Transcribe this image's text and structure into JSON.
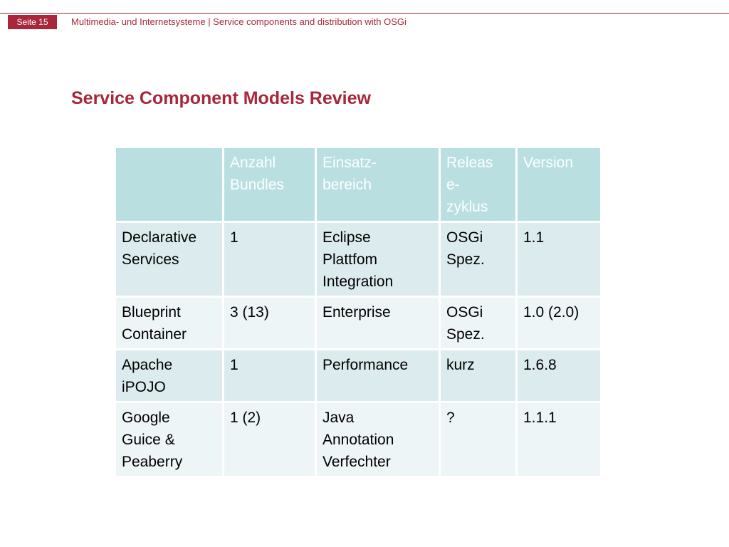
{
  "header": {
    "page_label": "Seite 15",
    "course_text": "Multimedia- und Internetsysteme | Service components and distribution with OSGi"
  },
  "slide": {
    "title": "Service Component Models Review"
  },
  "table": {
    "columns": [
      "",
      "Anzahl\nBundles",
      "Einsatz-\nbereich",
      "Releas\ne-\nzyklus",
      "Version"
    ],
    "rows": [
      [
        "Declarative\nServices",
        "1",
        "Eclipse\nPlattfom\nIntegration",
        "OSGi\nSpez.",
        "1.1"
      ],
      [
        "Blueprint\nContainer",
        "3 (13)",
        "Enterprise",
        "OSGi\nSpez.",
        "1.0 (2.0)"
      ],
      [
        "Apache\niPOJO",
        "1",
        "Performance",
        "kurz",
        "1.6.8"
      ],
      [
        "Google\nGuice &\nPeaberry",
        "1 (2)",
        "Java\nAnnotation\nVerfechter",
        "?",
        "1.1.1"
      ]
    ]
  },
  "colors": {
    "accent": "#a8273a",
    "header_fill": "#b9dfe1",
    "row_fill_odd": "#dcebee",
    "row_fill_even": "#eef5f6"
  }
}
